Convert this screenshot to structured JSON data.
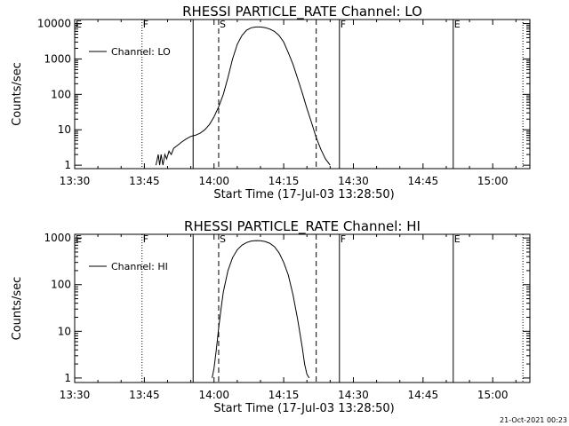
{
  "footer": {
    "timestamp": "21-Oct-2021 00:23"
  },
  "colors": {
    "background": "#ffffff",
    "ink": "#000000"
  },
  "chart_data": [
    {
      "type": "line",
      "title": "RHESSI PARTICLE_RATE Channel: LO",
      "xlabel": "Start Time (17-Jul-03 13:28:50)",
      "ylabel": "Counts/sec",
      "yscale": "log",
      "xlim_minutes_after_1330": [
        0,
        98
      ],
      "ylim": [
        0.8,
        13000
      ],
      "xticks": [
        {
          "minute": 0,
          "label": "13:30"
        },
        {
          "minute": 15,
          "label": "13:45"
        },
        {
          "minute": 30,
          "label": "14:00"
        },
        {
          "minute": 45,
          "label": "14:15"
        },
        {
          "minute": 60,
          "label": "14:30"
        },
        {
          "minute": 75,
          "label": "14:45"
        },
        {
          "minute": 90,
          "label": "15:00"
        }
      ],
      "yticks": [
        {
          "value": 1,
          "label": "1"
        },
        {
          "value": 10,
          "label": "10"
        },
        {
          "value": 100,
          "label": "100"
        },
        {
          "value": 1000,
          "label": "1000"
        },
        {
          "value": 10000,
          "label": "10000"
        }
      ],
      "legend": {
        "location": "top-left",
        "label": "Channel: LO"
      },
      "markers": [
        {
          "minute": 0,
          "style": "none",
          "label": "E"
        },
        {
          "minute": 14.5,
          "style": "dotted",
          "label": "F"
        },
        {
          "minute": 25.5,
          "style": "solid",
          "label": ""
        },
        {
          "minute": 31,
          "style": "dashed",
          "label": "S"
        },
        {
          "minute": 52,
          "style": "dashed",
          "label": ""
        },
        {
          "minute": 57,
          "style": "solid",
          "label": "F"
        },
        {
          "minute": 81.5,
          "style": "solid",
          "label": "E"
        },
        {
          "minute": 96.5,
          "style": "dotted",
          "label": ""
        }
      ],
      "series": [
        {
          "name": "Channel: LO",
          "x": [
            17.5,
            18,
            18.3,
            18.6,
            19,
            19.4,
            19.8,
            20.3,
            20.8,
            21.3,
            22,
            23,
            24,
            25,
            26,
            27,
            28,
            29,
            30,
            31,
            32,
            33,
            34,
            35,
            36,
            37,
            38,
            39,
            40,
            41,
            42,
            43,
            44,
            45,
            46,
            47,
            48,
            49,
            50,
            51,
            52,
            53,
            54,
            55
          ],
          "values": [
            1,
            2,
            1,
            2,
            1,
            2,
            1.5,
            2.5,
            2,
            3,
            3.5,
            4.5,
            5.5,
            6.5,
            7,
            8,
            10,
            14,
            23,
            45,
            100,
            300,
            1000,
            2600,
            4600,
            6500,
            7600,
            8000,
            8000,
            7700,
            7000,
            6000,
            4600,
            3000,
            1500,
            700,
            280,
            110,
            40,
            16,
            6,
            2.8,
            1.5,
            1
          ]
        }
      ]
    },
    {
      "type": "line",
      "title": "RHESSI PARTICLE_RATE Channel: HI",
      "xlabel": "Start Time (17-Jul-03 13:28:50)",
      "ylabel": "Counts/sec",
      "yscale": "log",
      "xlim_minutes_after_1330": [
        0,
        98
      ],
      "ylim": [
        0.8,
        1200
      ],
      "xticks": [
        {
          "minute": 0,
          "label": "13:30"
        },
        {
          "minute": 15,
          "label": "13:45"
        },
        {
          "minute": 30,
          "label": "14:00"
        },
        {
          "minute": 45,
          "label": "14:15"
        },
        {
          "minute": 60,
          "label": "14:30"
        },
        {
          "minute": 75,
          "label": "14:45"
        },
        {
          "minute": 90,
          "label": "15:00"
        }
      ],
      "yticks": [
        {
          "value": 1,
          "label": "1"
        },
        {
          "value": 10,
          "label": "10"
        },
        {
          "value": 100,
          "label": "100"
        },
        {
          "value": 1000,
          "label": "1000"
        }
      ],
      "legend": {
        "location": "top-left",
        "label": "Channel: HI"
      },
      "markers": [
        {
          "minute": 0,
          "style": "none",
          "label": "E"
        },
        {
          "minute": 14.5,
          "style": "dotted",
          "label": "F"
        },
        {
          "minute": 25.5,
          "style": "solid",
          "label": ""
        },
        {
          "minute": 31,
          "style": "dashed",
          "label": "S"
        },
        {
          "minute": 52,
          "style": "dashed",
          "label": ""
        },
        {
          "minute": 57,
          "style": "solid",
          "label": "F"
        },
        {
          "minute": 81.5,
          "style": "solid",
          "label": "E"
        },
        {
          "minute": 96.5,
          "style": "dotted",
          "label": ""
        }
      ],
      "series": [
        {
          "name": "Channel: HI",
          "x": [
            29.6,
            30,
            30.5,
            31,
            31.5,
            32,
            33,
            34,
            35,
            36,
            37,
            38,
            39,
            40,
            41,
            42,
            43,
            44,
            45,
            46,
            47,
            48,
            49,
            49.5,
            50,
            50.5
          ],
          "values": [
            1,
            1.6,
            4,
            12,
            30,
            70,
            200,
            380,
            560,
            700,
            800,
            860,
            880,
            870,
            840,
            770,
            650,
            480,
            300,
            160,
            60,
            18,
            4.5,
            2,
            1.2,
            1
          ]
        }
      ]
    }
  ]
}
